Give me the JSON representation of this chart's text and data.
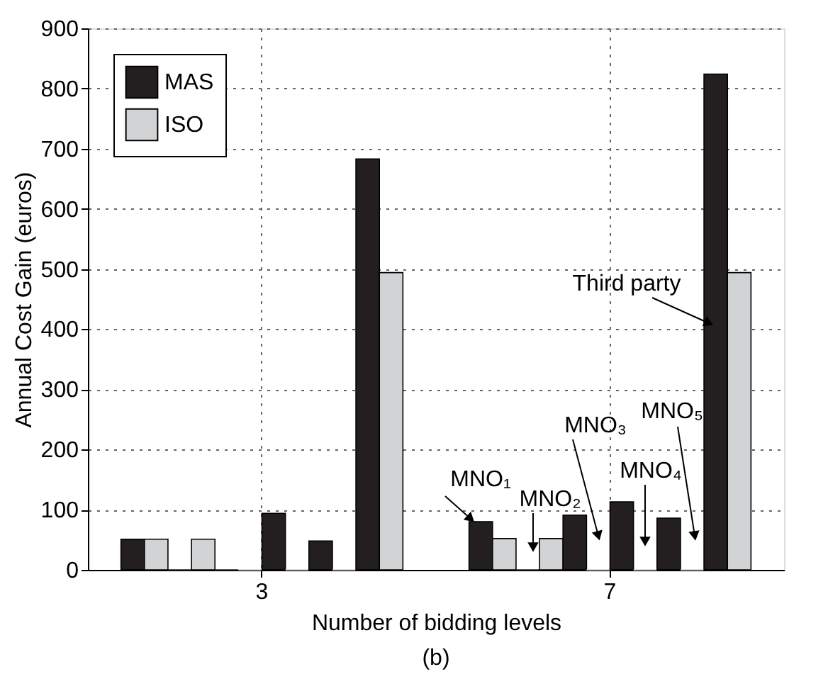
{
  "chart_data": {
    "type": "bar",
    "xlabel": "Number of bidding levels",
    "ylabel": "Annual Cost Gain (euros)",
    "categories": [
      "3",
      "7"
    ],
    "series": [
      {
        "name": "MAS",
        "color": "#231f20",
        "values": [
          51,
          80
        ]
      },
      {
        "name": "ISO",
        "color": "#d1d3d4",
        "values": [
          51,
          52
        ]
      },
      {
        "color": "#231f20",
        "values": [
          0,
          0
        ]
      },
      {
        "color": "#d1d3d4",
        "values": [
          51,
          52
        ]
      },
      {
        "color": "#231f20",
        "values": [
          0,
          91
        ]
      },
      {
        "color": "#d1d3d4",
        "values": [
          0,
          0
        ]
      },
      {
        "color": "#231f20",
        "values": [
          94,
          113
        ]
      },
      {
        "color": "#d1d3d4",
        "values": [
          0,
          0
        ]
      },
      {
        "color": "#231f20",
        "values": [
          48,
          86
        ]
      },
      {
        "color": "#d1d3d4",
        "values": [
          0,
          0
        ]
      },
      {
        "color": "#231f20",
        "values": [
          683,
          824
        ]
      },
      {
        "color": "#d1d3d4",
        "values": [
          494,
          494
        ]
      }
    ],
    "ylim": [
      0,
      900
    ],
    "yticks": [
      0,
      100,
      200,
      300,
      400,
      500,
      600,
      700,
      800,
      900
    ],
    "grid": true,
    "legend": "top left",
    "annotations": [
      "MNO₁",
      "MNO₂",
      "MNO₃",
      "MNO₄",
      "MNO₅",
      "Third party",
      "(b)"
    ]
  }
}
